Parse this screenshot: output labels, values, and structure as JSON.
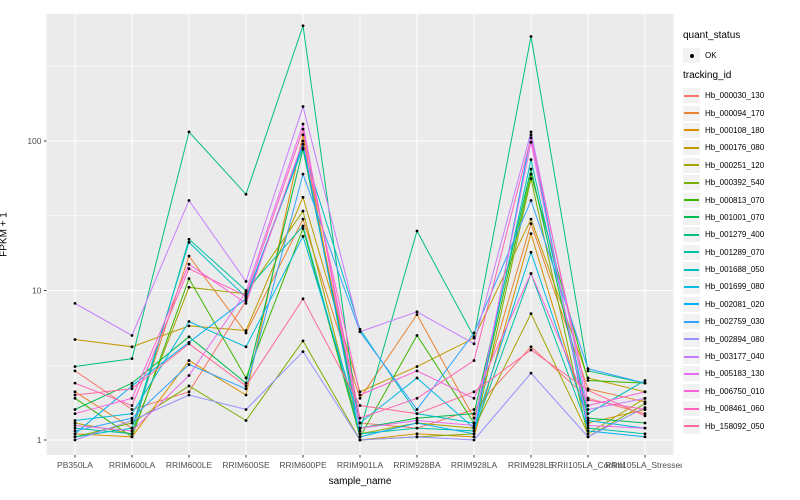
{
  "chart_data": {
    "type": "line",
    "title": "",
    "xlabel": "sample_name",
    "ylabel": "FPKM + 1",
    "y_scale": "log10",
    "y_ticks": [
      1,
      10,
      100
    ],
    "y_tick_labels": [
      "1",
      "10",
      "100"
    ],
    "y_minor_ticks": [
      3.162,
      31.62,
      316.2
    ],
    "ylim": [
      1,
      710
    ],
    "grid": "white major+minor gridlines on gray panel, legend right",
    "categories": [
      "PB350LA",
      "RRIM600LA",
      "RRIM600LE",
      "RRIM600SE",
      "RRIM600PE",
      "RRIM901LA",
      "RRIM928BA",
      "RRIM928LA",
      "RRIM928LE",
      "RRII105LA_Control",
      "RRII105LA_Stressed"
    ],
    "series": [
      {
        "name": "Hb_000030_130",
        "color": "#F8766D",
        "values": [
          2.9,
          1.6,
          2.1,
          8.5,
          95,
          1.3,
          1.2,
          1.6,
          4.2,
          1.9,
          1.5
        ]
      },
      {
        "name": "Hb_000094_170",
        "color": "#EA8331",
        "values": [
          2.1,
          1.2,
          17,
          5.2,
          30,
          1.9,
          6.9,
          1.4,
          28,
          2.2,
          1.8
        ]
      },
      {
        "name": "Hb_000108_180",
        "color": "#D89000",
        "values": [
          1.1,
          1.05,
          3.4,
          2.0,
          110,
          1.0,
          1.1,
          1.05,
          24,
          1.3,
          1.6
        ]
      },
      {
        "name": "Hb_000176_080",
        "color": "#C09B00",
        "values": [
          4.7,
          4.2,
          5.8,
          5.4,
          42,
          2.1,
          3.1,
          4.8,
          30,
          2.6,
          2.1
        ]
      },
      {
        "name": "Hb_000251_120",
        "color": "#A3A500",
        "values": [
          1.3,
          1.1,
          10.5,
          9.5,
          34,
          1.1,
          1.3,
          1.2,
          7,
          1.1,
          1.9
        ]
      },
      {
        "name": "Hb_000392_540",
        "color": "#7CAE00",
        "values": [
          1.05,
          1.3,
          2.3,
          1.35,
          4.6,
          1.0,
          1.05,
          1.1,
          56,
          1.05,
          1.75
        ]
      },
      {
        "name": "Hb_000813_070",
        "color": "#39B600",
        "values": [
          1.9,
          1.05,
          12,
          2.6,
          26,
          1.05,
          5.0,
          1.3,
          60,
          2.5,
          2.4
        ]
      },
      {
        "name": "Hb_001001_070",
        "color": "#00BB4E",
        "values": [
          1.6,
          2.4,
          4.9,
          2.4,
          88,
          1.2,
          1.4,
          1.5,
          65,
          1.4,
          1.3
        ]
      },
      {
        "name": "Hb_001279_400",
        "color": "#00BF7D",
        "values": [
          3.1,
          3.5,
          115,
          44,
          590,
          1.15,
          25,
          4.9,
          500,
          2.9,
          2.4
        ]
      },
      {
        "name": "Hb_001289_070",
        "color": "#00C1A3",
        "values": [
          1.2,
          1.1,
          22,
          10,
          27,
          1.1,
          1.2,
          1.15,
          13,
          1.2,
          1.1
        ]
      },
      {
        "name": "Hb_001688_050",
        "color": "#00BFC4",
        "values": [
          1.05,
          1.2,
          21,
          9,
          90,
          5.5,
          1.5,
          1.3,
          75,
          1.5,
          2.5
        ]
      },
      {
        "name": "Hb_001699_080",
        "color": "#00BAE0",
        "values": [
          1.35,
          1.5,
          6.2,
          4.2,
          23,
          1.3,
          2.6,
          1.2,
          18,
          1.35,
          1.2
        ]
      },
      {
        "name": "Hb_002081_020",
        "color": "#00B0F6",
        "values": [
          1.1,
          2.3,
          4.5,
          8.8,
          95,
          1.05,
          1.3,
          1.1,
          110,
          1.15,
          1.05
        ]
      },
      {
        "name": "Hb_002759_030",
        "color": "#35A2FF",
        "values": [
          1.15,
          1.4,
          3.2,
          2.2,
          60,
          5.3,
          1.6,
          5.2,
          40,
          3.0,
          2.4
        ]
      },
      {
        "name": "Hb_002894_080",
        "color": "#9590FF",
        "values": [
          1.0,
          1.35,
          2.0,
          1.6,
          3.9,
          1.0,
          1.05,
          1.0,
          2.8,
          1.05,
          1.65
        ]
      },
      {
        "name": "Hb_003177_040",
        "color": "#C77CFF",
        "values": [
          8.2,
          5.0,
          40,
          11.5,
          170,
          5.3,
          7.2,
          4.4,
          115,
          1.6,
          1.9
        ]
      },
      {
        "name": "Hb_005183_130",
        "color": "#E76BF3",
        "values": [
          1.25,
          1.15,
          2.7,
          9.8,
          130,
          1.2,
          1.35,
          1.25,
          98,
          1.25,
          1.2
        ]
      },
      {
        "name": "Hb_006750_010",
        "color": "#FA62DB",
        "values": [
          1.5,
          1.9,
          15,
          8.2,
          100,
          2.0,
          2.9,
          1.9,
          13,
          1.7,
          2.1
        ]
      },
      {
        "name": "Hb_008461_060",
        "color": "#FF62BC",
        "values": [
          2.4,
          1.7,
          14,
          9.2,
          120,
          1.4,
          1.9,
          3.4,
          105,
          1.85,
          1.6
        ]
      },
      {
        "name": "Hb_158092_050",
        "color": "#FF6A98",
        "values": [
          2.0,
          2.2,
          4.4,
          2.3,
          8.8,
          1.7,
          1.5,
          2.1,
          4.0,
          2.15,
          1.45
        ]
      }
    ],
    "legend": {
      "position": "right",
      "quant_status_title": "quant_status",
      "quant_status_items": [
        {
          "label": "OK",
          "shape": "point"
        }
      ],
      "tracking_id_title": "tracking_id"
    }
  },
  "colors": {
    "panel_bg": "#EBEBEB",
    "gridline": "#FFFFFF",
    "tick_text": "#4D4D4D",
    "tick_mark": "#333333",
    "point": "#000000",
    "legend_key_bg": "#F2F2F2"
  }
}
